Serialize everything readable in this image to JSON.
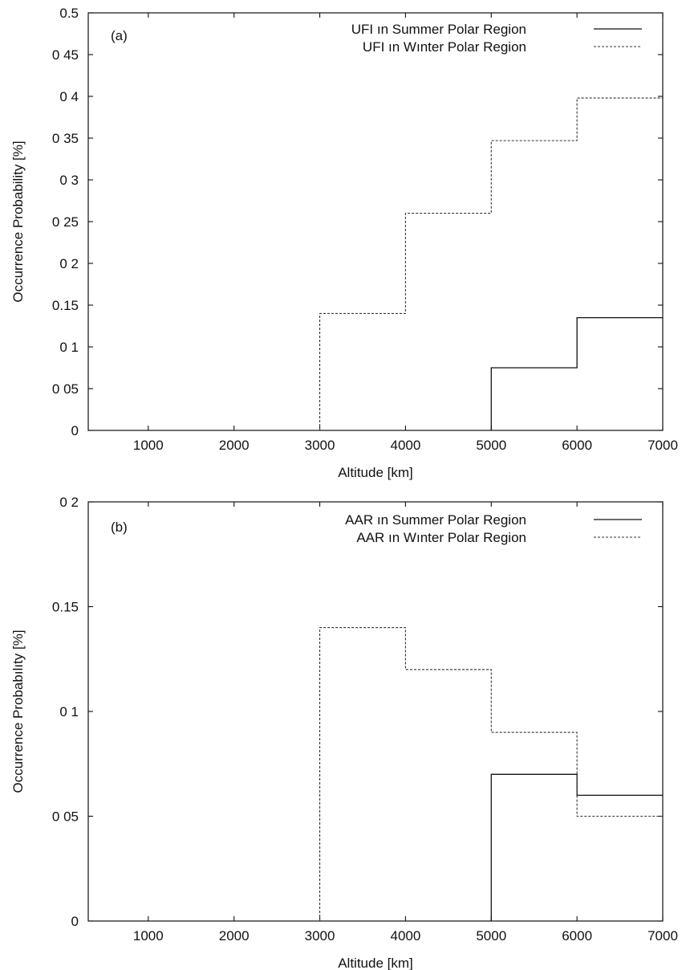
{
  "chart_data": [
    {
      "type": "line",
      "panel_label": "(a)",
      "xlabel": "Altitude [km]",
      "ylabel": "Occurrence Probability [%]",
      "xlim": [
        300,
        7000
      ],
      "ylim": [
        0,
        0.5
      ],
      "x_ticks": [
        1000,
        2000,
        3000,
        4000,
        5000,
        6000,
        7000
      ],
      "x_tick_labels": [
        "1000",
        "2000",
        "3000",
        "4000",
        "5000",
        "6000",
        "7000"
      ],
      "y_ticks": [
        0,
        0.05,
        0.1,
        0.15,
        0.2,
        0.25,
        0.3,
        0.35,
        0.4,
        0.45,
        0.5
      ],
      "y_tick_labels": [
        "0",
        "0 05",
        "0 1",
        "0.15",
        "0 2",
        "0 25",
        "0 3",
        "0 35",
        "0 4",
        "0 45",
        "0.5"
      ],
      "grid": false,
      "legend_position": "top-right",
      "series": [
        {
          "name": "UFI ın Summer Polar Region",
          "style": "solid",
          "color": "#111111",
          "bins": [
            [
              5000,
              6000,
              0.075
            ],
            [
              6000,
              7000,
              0.135
            ]
          ]
        },
        {
          "name": "UFI ın Wınter Polar Region",
          "style": "dashed",
          "color": "#333333",
          "bins": [
            [
              3000,
              4000,
              0.14
            ],
            [
              4000,
              5000,
              0.26
            ],
            [
              5000,
              6000,
              0.347
            ],
            [
              6000,
              7000,
              0.398
            ]
          ]
        }
      ]
    },
    {
      "type": "line",
      "panel_label": "(b)",
      "xlabel": "Altitude [km]",
      "ylabel": "Occurrence Probabılıty [%]",
      "xlim": [
        300,
        7000
      ],
      "ylim": [
        0,
        0.2
      ],
      "x_ticks": [
        1000,
        2000,
        3000,
        4000,
        5000,
        6000,
        7000
      ],
      "x_tick_labels": [
        "1000",
        "2000",
        "3000",
        "4000",
        "5000",
        "6000",
        "7000"
      ],
      "y_ticks": [
        0,
        0.05,
        0.1,
        0.15,
        0.2
      ],
      "y_tick_labels": [
        "0",
        "0 05",
        "0 1",
        "0.15",
        "0 2"
      ],
      "grid": false,
      "legend_position": "top-right",
      "series": [
        {
          "name": "AAR ın Summer Polar Region",
          "style": "solid",
          "color": "#111111",
          "bins": [
            [
              5000,
              6000,
              0.07
            ],
            [
              6000,
              7000,
              0.06
            ]
          ]
        },
        {
          "name": "AAR ın Wınter Polar Region",
          "style": "dashed",
          "color": "#333333",
          "bins": [
            [
              3000,
              4000,
              0.14
            ],
            [
              4000,
              5000,
              0.12
            ],
            [
              5000,
              6000,
              0.09
            ],
            [
              6000,
              7000,
              0.05
            ]
          ]
        }
      ]
    }
  ]
}
